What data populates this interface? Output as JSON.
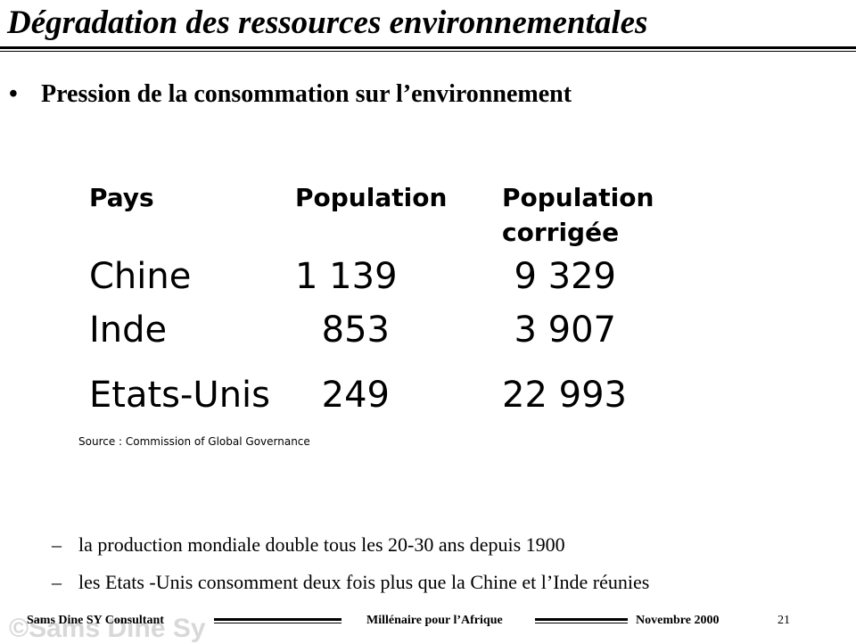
{
  "slide": {
    "title": "Dégradation des ressources environnementales",
    "bullet_symbol": "•",
    "bullet_text": "Pression de la consommation  sur l’environnement"
  },
  "table": {
    "headers": {
      "pays": "Pays",
      "population": "Population",
      "population_corrigee_line1": "Population",
      "population_corrigee_line2": "corrigée"
    },
    "rows": [
      {
        "pays": "Chine",
        "population": "1 139",
        "population_corrigee": "9 329"
      },
      {
        "pays": "Inde",
        "population": "853",
        "population_corrigee": "3 907"
      },
      {
        "pays": "Etats-Unis",
        "population": "249",
        "population_corrigee": "22 993"
      }
    ],
    "source": "Source : Commission of Global Governance"
  },
  "sub_bullets": {
    "dash": "–",
    "items": [
      "la production mondiale double tous les 20-30 ans depuis 1900",
      "les Etats -Unis consomment deux fois plus que la Chine et l’Inde réunies"
    ]
  },
  "footer": {
    "watermark": "©Sams Dine Sy",
    "left": "Sams Dine SY Consultant",
    "center": "Millénaire pour l’Afrique",
    "right": "Novembre 2000",
    "page": "21"
  }
}
